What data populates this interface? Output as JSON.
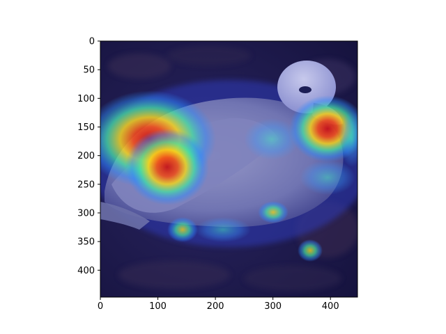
{
  "figure": {
    "background": "#ffffff",
    "image_description_icon": "bird-heatmap-image"
  },
  "axes": {
    "x_ticks": [
      "0",
      "100",
      "200",
      "300",
      "400"
    ],
    "y_ticks": [
      "0",
      "50",
      "100",
      "150",
      "200",
      "250",
      "300",
      "350",
      "400"
    ],
    "x_tick_values": [
      0,
      100,
      200,
      300,
      400
    ],
    "y_tick_values": [
      0,
      50,
      100,
      150,
      200,
      250,
      300,
      350,
      400
    ],
    "xlim": [
      0,
      447
    ],
    "ylim": [
      447,
      0
    ]
  },
  "heatmap": {
    "colormap": "jet",
    "hotspots": [
      {
        "x": 75,
        "y": 195,
        "intensity": 0.95
      },
      {
        "x": 125,
        "y": 235,
        "intensity": 0.95
      },
      {
        "x": 390,
        "y": 170,
        "intensity": 0.95
      },
      {
        "x": 150,
        "y": 335,
        "intensity": 0.45
      },
      {
        "x": 300,
        "y": 305,
        "intensity": 0.4
      },
      {
        "x": 365,
        "y": 365,
        "intensity": 0.35
      }
    ]
  }
}
